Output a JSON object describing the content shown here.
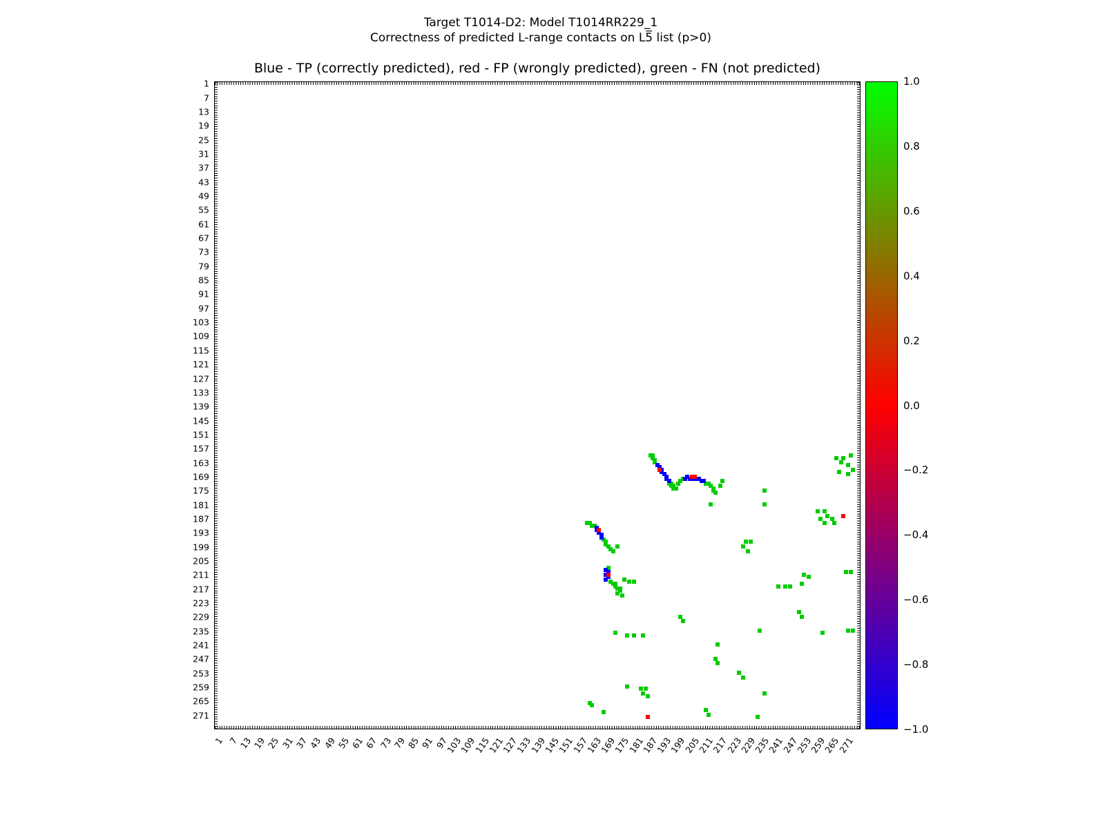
{
  "figure": {
    "suptitle_line1": "Target T1014-D2: Model T1014RR229_1",
    "suptitle_line2": "Correctness of predicted L-range contacts on L5̅ list (p>0)",
    "axes_title": "Blue - TP (correctly predicted), red - FP (wrongly predicted), green - FN (not predicted)"
  },
  "chart_data": {
    "type": "scatter",
    "title": "Blue - TP (correctly predicted), red - FP (wrongly predicted), green - FN (not predicted)",
    "xlabel": "",
    "ylabel": "",
    "xlim": [
      0,
      277
    ],
    "ylim": [
      0,
      277
    ],
    "y_axis_inverted": true,
    "grid": false,
    "legend_position": "none",
    "x_ticks": [
      1,
      7,
      13,
      19,
      25,
      31,
      37,
      43,
      49,
      55,
      61,
      67,
      73,
      79,
      85,
      91,
      97,
      103,
      109,
      115,
      121,
      127,
      133,
      139,
      145,
      151,
      157,
      163,
      169,
      175,
      181,
      187,
      193,
      199,
      205,
      211,
      217,
      223,
      229,
      235,
      241,
      247,
      253,
      259,
      265,
      271
    ],
    "y_ticks": [
      1,
      7,
      13,
      19,
      25,
      31,
      37,
      43,
      49,
      55,
      61,
      67,
      73,
      79,
      85,
      91,
      97,
      103,
      109,
      115,
      121,
      127,
      133,
      139,
      145,
      151,
      157,
      163,
      169,
      175,
      181,
      187,
      193,
      199,
      205,
      211,
      217,
      223,
      229,
      235,
      241,
      247,
      253,
      259,
      265,
      271
    ],
    "colorbar": {
      "min": -1.0,
      "max": 1.0,
      "tick_values": [
        1.0,
        0.8,
        0.6,
        0.4,
        0.2,
        0.0,
        -0.2,
        -0.4,
        -0.6,
        -0.8,
        -1.0
      ],
      "tick_labels": [
        "1.0",
        "0.8",
        "0.6",
        "0.4",
        "0.2",
        "0.0",
        "−0.2",
        "−0.4",
        "−0.6",
        "−0.8",
        "−1.0"
      ],
      "gradient": [
        "#0000ff 0%",
        "#ff0000 50%",
        "#00ff00 100%"
      ]
    },
    "series": [
      {
        "name": "FN",
        "label": "FN (not predicted)",
        "color": "#00cc00",
        "points": [
          [
            187,
            160
          ],
          [
            188,
            160
          ],
          [
            188,
            161
          ],
          [
            189,
            162
          ],
          [
            189,
            163
          ],
          [
            195,
            172
          ],
          [
            196,
            172
          ],
          [
            196,
            173
          ],
          [
            197,
            173
          ],
          [
            197,
            174
          ],
          [
            198,
            174
          ],
          [
            199,
            172
          ],
          [
            200,
            171
          ],
          [
            201,
            170
          ],
          [
            211,
            172
          ],
          [
            212,
            172
          ],
          [
            213,
            173
          ],
          [
            214,
            174
          ],
          [
            214,
            175
          ],
          [
            215,
            176
          ],
          [
            217,
            173
          ],
          [
            218,
            171
          ],
          [
            160,
            189
          ],
          [
            161,
            189
          ],
          [
            162,
            190
          ],
          [
            163,
            190
          ],
          [
            167,
            196
          ],
          [
            168,
            197
          ],
          [
            168,
            198
          ],
          [
            169,
            199
          ],
          [
            170,
            200
          ],
          [
            171,
            201
          ],
          [
            173,
            199
          ],
          [
            169,
            208
          ],
          [
            170,
            214
          ],
          [
            171,
            215
          ],
          [
            172,
            215
          ],
          [
            172,
            216
          ],
          [
            173,
            217
          ],
          [
            174,
            217
          ],
          [
            174,
            218
          ],
          [
            173,
            219
          ],
          [
            175,
            220
          ],
          [
            176,
            213
          ],
          [
            178,
            214
          ],
          [
            180,
            214
          ],
          [
            236,
            175
          ],
          [
            236,
            181
          ],
          [
            213,
            181
          ],
          [
            267,
            161
          ],
          [
            270,
            161
          ],
          [
            273,
            160
          ],
          [
            269,
            163
          ],
          [
            272,
            164
          ],
          [
            274,
            166
          ],
          [
            268,
            167
          ],
          [
            272,
            168
          ],
          [
            259,
            184
          ],
          [
            262,
            184
          ],
          [
            263,
            186
          ],
          [
            260,
            187
          ],
          [
            265,
            187
          ],
          [
            262,
            189
          ],
          [
            266,
            189
          ],
          [
            228,
            197
          ],
          [
            230,
            197
          ],
          [
            227,
            199
          ],
          [
            229,
            201
          ],
          [
            253,
            211
          ],
          [
            255,
            212
          ],
          [
            271,
            210
          ],
          [
            273,
            210
          ],
          [
            242,
            216
          ],
          [
            245,
            216
          ],
          [
            247,
            216
          ],
          [
            252,
            215
          ],
          [
            200,
            229
          ],
          [
            201,
            231
          ],
          [
            251,
            227
          ],
          [
            252,
            229
          ],
          [
            261,
            236
          ],
          [
            272,
            235
          ],
          [
            274,
            235
          ],
          [
            234,
            235
          ],
          [
            172,
            236
          ],
          [
            177,
            237
          ],
          [
            180,
            237
          ],
          [
            184,
            237
          ],
          [
            216,
            241
          ],
          [
            215,
            247
          ],
          [
            216,
            249
          ],
          [
            225,
            253
          ],
          [
            227,
            255
          ],
          [
            236,
            262
          ],
          [
            177,
            259
          ],
          [
            183,
            260
          ],
          [
            185,
            260
          ],
          [
            184,
            262
          ],
          [
            186,
            263
          ],
          [
            161,
            266
          ],
          [
            162,
            267
          ],
          [
            167,
            270
          ],
          [
            211,
            269
          ],
          [
            212,
            271
          ],
          [
            233,
            272
          ]
        ]
      },
      {
        "name": "TP",
        "label": "TP (correctly predicted)",
        "color": "#0000ff",
        "points": [
          [
            190,
            164
          ],
          [
            191,
            165
          ],
          [
            192,
            166
          ],
          [
            192,
            167
          ],
          [
            193,
            168
          ],
          [
            194,
            169
          ],
          [
            194,
            170
          ],
          [
            195,
            171
          ],
          [
            202,
            170
          ],
          [
            203,
            169
          ],
          [
            204,
            170
          ],
          [
            205,
            170
          ],
          [
            206,
            170
          ],
          [
            207,
            170
          ],
          [
            208,
            170
          ],
          [
            209,
            171
          ],
          [
            210,
            171
          ],
          [
            164,
            191
          ],
          [
            164,
            192
          ],
          [
            165,
            193
          ],
          [
            166,
            194
          ],
          [
            166,
            195
          ],
          [
            168,
            209
          ],
          [
            169,
            210
          ],
          [
            168,
            211
          ],
          [
            169,
            212
          ],
          [
            168,
            213
          ]
        ]
      },
      {
        "name": "FP",
        "label": "FP (wrongly predicted)",
        "color": "#ff0000",
        "points": [
          [
            191,
            166
          ],
          [
            205,
            169
          ],
          [
            206,
            169
          ],
          [
            165,
            192
          ],
          [
            169,
            211
          ],
          [
            270,
            186
          ],
          [
            186,
            272
          ]
        ]
      }
    ]
  }
}
